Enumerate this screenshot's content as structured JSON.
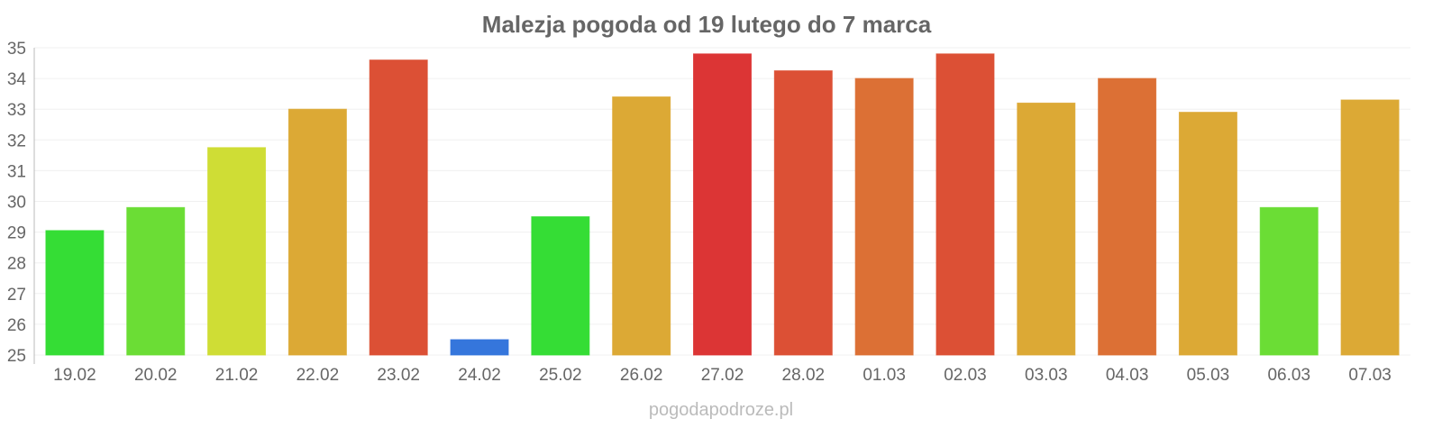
{
  "chart_data": {
    "type": "bar",
    "title": "Malezja pogoda od 19 lutego do 7 marca",
    "xlabel": "",
    "ylabel": "",
    "ylim": [
      25,
      35
    ],
    "yticks": [
      25,
      26,
      27,
      28,
      29,
      30,
      31,
      32,
      33,
      34,
      35
    ],
    "grid": true,
    "categories": [
      "19.02",
      "20.02",
      "21.02",
      "22.02",
      "23.02",
      "24.02",
      "25.02",
      "26.02",
      "27.02",
      "28.02",
      "01.03",
      "02.03",
      "03.03",
      "04.03",
      "05.03",
      "06.03",
      "07.03"
    ],
    "values": [
      29.05,
      29.8,
      31.75,
      33.0,
      34.6,
      25.5,
      29.5,
      33.4,
      34.8,
      34.25,
      34.0,
      34.8,
      33.2,
      34.0,
      32.9,
      29.8,
      33.3
    ],
    "colors": [
      "#35dd35",
      "#6bdd35",
      "#cfdd35",
      "#dca935",
      "#dc5035",
      "#3576dc",
      "#35dd35",
      "#dca935",
      "#dc3535",
      "#dc5035",
      "#dc7035",
      "#dc5035",
      "#dca935",
      "#dc7035",
      "#dca935",
      "#6bdd35",
      "#dca935"
    ]
  },
  "watermark": "pogodapodroze.pl"
}
